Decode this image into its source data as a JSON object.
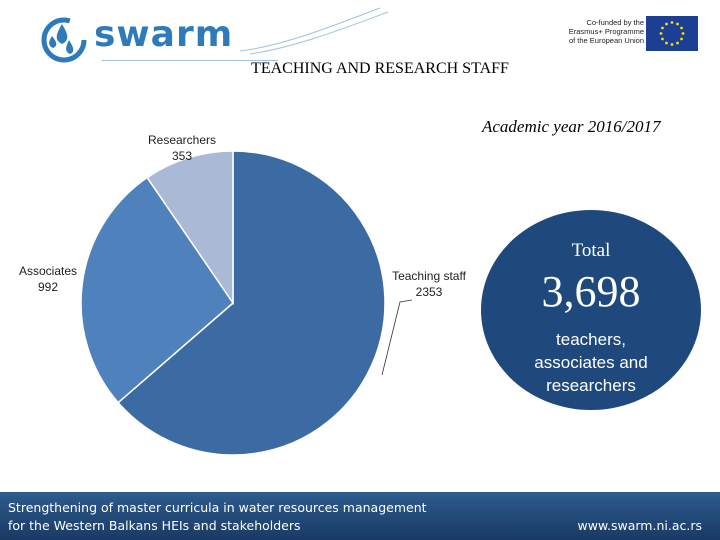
{
  "header": {
    "logo_text": "swarm",
    "eu_lines": [
      "Co-funded by the",
      "Erasmus+ Programme",
      "of the European Union"
    ],
    "page_title": "TEACHING AND RESEARCH STAFF",
    "year_label": "Academic year 2016/2017"
  },
  "chart_data": {
    "type": "pie",
    "title": "",
    "categories": [
      "Teaching staff",
      "Associates",
      "Researchers"
    ],
    "values": [
      2353,
      992,
      353
    ],
    "colors": [
      "#3c6aa3",
      "#4f81bd",
      "#a9b9d6"
    ],
    "labels": {
      "teaching_name": "Teaching staff",
      "teaching_value": "2353",
      "associates_name": "Associates",
      "associates_value": "992",
      "researchers_name": "Researchers",
      "researchers_value": "353"
    },
    "legend": "none"
  },
  "total": {
    "label": "Total",
    "value": "3,698",
    "desc_line1": "teachers,",
    "desc_line2": "associates and",
    "desc_line3": "researchers"
  },
  "footer": {
    "line1": "Strengthening of master curricula in water resources  management",
    "line2": "for the Western Balkans HEIs and stakeholders",
    "url": "www.swarm.ni.ac.rs"
  }
}
